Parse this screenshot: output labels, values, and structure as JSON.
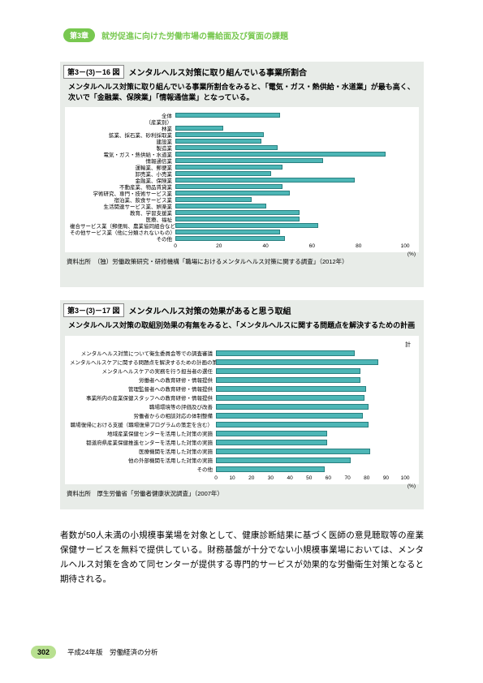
{
  "header": {
    "chapter_badge": "第3章",
    "chapter_title": "就労促進に向けた労働市場の需給面及び質面の課題"
  },
  "figure1": {
    "number": "第3－(3)－16 図",
    "title": "メンタルヘルス対策に取り組んでいる事業所割合",
    "subtitle": "メンタルヘルス対策に取り組んでいる事業所割合をみると、「電気・ガス・熱供給・水道業」が最も高く、次いで「金融業、保険業」「情報通信業」となっている。",
    "xmax": 100,
    "ticks": [
      0,
      20,
      40,
      60,
      80,
      100
    ],
    "unit": "(%)",
    "bars": [
      {
        "label": "全体",
        "value": 44
      },
      {
        "label": "（産業別）",
        "value": 0
      },
      {
        "label": "林業",
        "value": 20
      },
      {
        "label": "鉱業、採石業、砂利採取業",
        "value": 37
      },
      {
        "label": "建設業",
        "value": 36
      },
      {
        "label": "製造業",
        "value": 43
      },
      {
        "label": "電気・ガス・熱供給・水道業",
        "value": 88
      },
      {
        "label": "情報通信業",
        "value": 62
      },
      {
        "label": "運輸業、郵便業",
        "value": 45
      },
      {
        "label": "卸売業、小売業",
        "value": 40
      },
      {
        "label": "金融業、保険業",
        "value": 75
      },
      {
        "label": "不動産業、物品賃貸業",
        "value": 45
      },
      {
        "label": "学術研究、専門・技術サービス業",
        "value": 48
      },
      {
        "label": "宿泊業、飲食サービス業",
        "value": 32
      },
      {
        "label": "生活関連サービス業、娯楽業",
        "value": 38
      },
      {
        "label": "教育、学習支援業",
        "value": 52
      },
      {
        "label": "医療、福祉",
        "value": 52
      },
      {
        "label": "複合サービス業（郵便局、農業協同組合など）",
        "value": 60
      },
      {
        "label": "その他サービス業（他に分類されないもの）",
        "value": 44
      },
      {
        "label": "その他",
        "value": 46
      }
    ],
    "source": "資料出所　（独）労働政策研究・研修機構「職場におけるメンタルヘルス対策に関する調査」（2012年）"
  },
  "figure2": {
    "number": "第3－(3)－17 図",
    "title": "メンタルヘルス対策の効果があると思う取組",
    "subtitle": "メンタルヘルス対策の取組別効果の有無をみると、「メンタルヘルスに関する問題点を解決するための計画",
    "right_label": "計",
    "xmax": 100,
    "ticks": [
      0,
      10,
      20,
      30,
      40,
      50,
      60,
      70,
      80,
      90,
      100
    ],
    "unit": "(%)",
    "bars": [
      {
        "label": "メンタルヘルス対策について衛生委員会等での調査審議",
        "value": 70
      },
      {
        "label": "メンタルヘルスケアに関する問題点を解決するための計画の策定と実施",
        "value": 82
      },
      {
        "label": "メンタルヘルスケアの実務を行う担当者の選任",
        "value": 73
      },
      {
        "label": "労働者への教育研修・情報提供",
        "value": 73
      },
      {
        "label": "管理監督者への教育研修・情報提供",
        "value": 76
      },
      {
        "label": "事業所内の産業保健スタッフへの教育研修・情報提供",
        "value": 75
      },
      {
        "label": "職場環境等の評価及び改善",
        "value": 77
      },
      {
        "label": "労働者からの相談対応の体制整備",
        "value": 74
      },
      {
        "label": "職場復帰における支援（職場復帰プログラムの策定を含む）",
        "value": 77
      },
      {
        "label": "地域産業保健センターを活用した対策の実施",
        "value": 56
      },
      {
        "label": "都道府県産業保健推進センターを活用した対策の実施",
        "value": 56
      },
      {
        "label": "医療機関を活用した対策の実施",
        "value": 78
      },
      {
        "label": "他の外部機関を活用した対策の実施",
        "value": 68
      },
      {
        "label": "その他",
        "value": 55
      }
    ],
    "source": "資料出所　厚生労働省「労働者健康状況調査」（2007年）"
  },
  "body_text": "者数が50人未満の小規模事業場を対象として、健康診断結果に基づく医師の意見聴取等の産業保健サービスを無料で提供している。財務基盤が十分でない小規模事業場においては、メンタルヘルス対策を含めて同センターが提供する専門的サービスが効果的な労働衛生対策となると期待される。",
  "footer": {
    "page_num": "302",
    "text": "平成24年版　労働経済の分析"
  },
  "colors": {
    "bar_fill": "#4db6b6",
    "bar_border": "#2a8080",
    "panel_bg": "#e8ece8",
    "accent_green": "#78c850",
    "page_badge": "#b8e090"
  }
}
